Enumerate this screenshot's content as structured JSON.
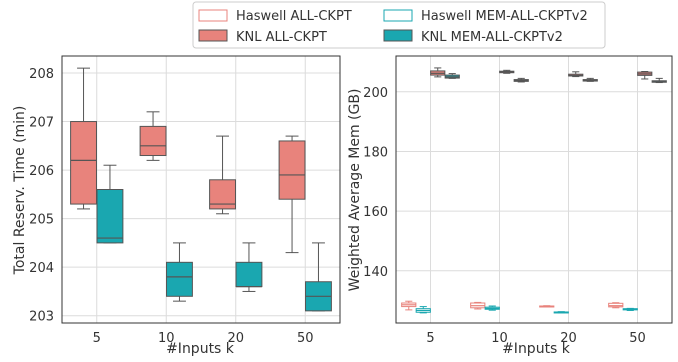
{
  "legend": {
    "placement": "top-center",
    "items": [
      {
        "label": "Haswell ALL-CKPT",
        "color": "#e8837c",
        "style": "outline"
      },
      {
        "label": "Haswell MEM-ALL-CKPTv2",
        "color": "#1aa7b0",
        "style": "outline"
      },
      {
        "label": "KNL ALL-CKPT",
        "color": "#e8837c",
        "style": "filled"
      },
      {
        "label": "KNL MEM-ALL-CKPTv2",
        "color": "#1aa7b0",
        "style": "filled"
      }
    ]
  },
  "chart_data": [
    {
      "type": "box",
      "ylabel": "Total Reserv. Time (min)",
      "xlabel": "#Inputs k",
      "categories": [
        "5",
        "10",
        "20",
        "50"
      ],
      "ylim": [
        202.85,
        208.35
      ],
      "yticks": [
        203,
        204,
        205,
        206,
        207,
        208
      ],
      "grid": true,
      "series": [
        {
          "name": "KNL ALL-CKPT",
          "color": "#e8837c",
          "style": "filled",
          "boxes": [
            {
              "min": 205.2,
              "q1": 205.3,
              "median": 206.2,
              "q3": 207.0,
              "max": 208.1
            },
            {
              "min": 206.2,
              "q1": 206.3,
              "median": 206.5,
              "q3": 206.9,
              "max": 207.2
            },
            {
              "min": 205.1,
              "q1": 205.2,
              "median": 205.3,
              "q3": 205.8,
              "max": 206.7
            },
            {
              "min": 204.3,
              "q1": 205.4,
              "median": 205.9,
              "q3": 206.6,
              "max": 206.7
            }
          ]
        },
        {
          "name": "KNL MEM-ALL-CKPTv2",
          "color": "#1aa7b0",
          "style": "filled",
          "boxes": [
            {
              "min": 204.5,
              "q1": 204.5,
              "median": 204.6,
              "q3": 205.6,
              "max": 206.1
            },
            {
              "min": 203.3,
              "q1": 203.4,
              "median": 203.8,
              "q3": 204.1,
              "max": 204.5
            },
            {
              "min": 203.5,
              "q1": 203.6,
              "median": 203.6,
              "q3": 204.1,
              "max": 204.5
            },
            {
              "min": 203.1,
              "q1": 203.1,
              "median": 203.4,
              "q3": 203.7,
              "max": 204.5
            }
          ]
        }
      ]
    },
    {
      "type": "box",
      "ylabel": "Weighted Average Mem (GB)",
      "xlabel": "#Inputs k",
      "categories": [
        "5",
        "10",
        "20",
        "50"
      ],
      "ylim": [
        122.5,
        212
      ],
      "yticks": [
        140,
        160,
        180,
        200
      ],
      "grid": true,
      "series": [
        {
          "name": "Haswell ALL-CKPT",
          "color": "#e8837c",
          "style": "outline",
          "boxes": [
            {
              "min": 126.9,
              "q1": 128.0,
              "median": 128.6,
              "q3": 129.2,
              "max": 129.8
            },
            {
              "min": 127.2,
              "q1": 127.6,
              "median": 128.3,
              "q3": 129.2,
              "max": 129.4
            },
            {
              "min": 127.9,
              "q1": 128.0,
              "median": 128.1,
              "q3": 128.2,
              "max": 128.3
            },
            {
              "min": 127.6,
              "q1": 127.9,
              "median": 128.3,
              "q3": 129.1,
              "max": 129.3
            }
          ]
        },
        {
          "name": "Haswell MEM-ALL-CKPTv2",
          "color": "#1aa7b0",
          "style": "outline",
          "boxes": [
            {
              "min": 125.9,
              "q1": 126.1,
              "median": 126.7,
              "q3": 127.3,
              "max": 128.0
            },
            {
              "min": 126.8,
              "q1": 127.1,
              "median": 127.4,
              "q3": 127.8,
              "max": 128.2
            },
            {
              "min": 125.9,
              "q1": 126.0,
              "median": 126.1,
              "q3": 126.2,
              "max": 126.3
            },
            {
              "min": 126.7,
              "q1": 126.9,
              "median": 127.1,
              "q3": 127.3,
              "max": 127.4
            }
          ]
        },
        {
          "name": "KNL ALL-CKPT",
          "color": "#e8837c",
          "style": "filled",
          "boxes": [
            {
              "min": 205.0,
              "q1": 205.6,
              "median": 206.2,
              "q3": 207.0,
              "max": 208.0
            },
            {
              "min": 206.2,
              "q1": 206.4,
              "median": 206.7,
              "q3": 206.9,
              "max": 207.2
            },
            {
              "min": 205.1,
              "q1": 205.3,
              "median": 205.5,
              "q3": 205.9,
              "max": 206.7
            },
            {
              "min": 204.3,
              "q1": 205.5,
              "median": 206.0,
              "q3": 206.6,
              "max": 206.8
            }
          ]
        },
        {
          "name": "KNL MEM-ALL-CKPTv2",
          "color": "#1aa7b0",
          "style": "filled",
          "boxes": [
            {
              "min": 204.5,
              "q1": 204.6,
              "median": 205.0,
              "q3": 205.6,
              "max": 206.1
            },
            {
              "min": 203.3,
              "q1": 203.5,
              "median": 203.8,
              "q3": 204.1,
              "max": 204.5
            },
            {
              "min": 203.5,
              "q1": 203.6,
              "median": 203.8,
              "q3": 204.1,
              "max": 204.5
            },
            {
              "min": 203.1,
              "q1": 203.2,
              "median": 203.4,
              "q3": 203.7,
              "max": 204.5
            }
          ]
        }
      ]
    }
  ]
}
